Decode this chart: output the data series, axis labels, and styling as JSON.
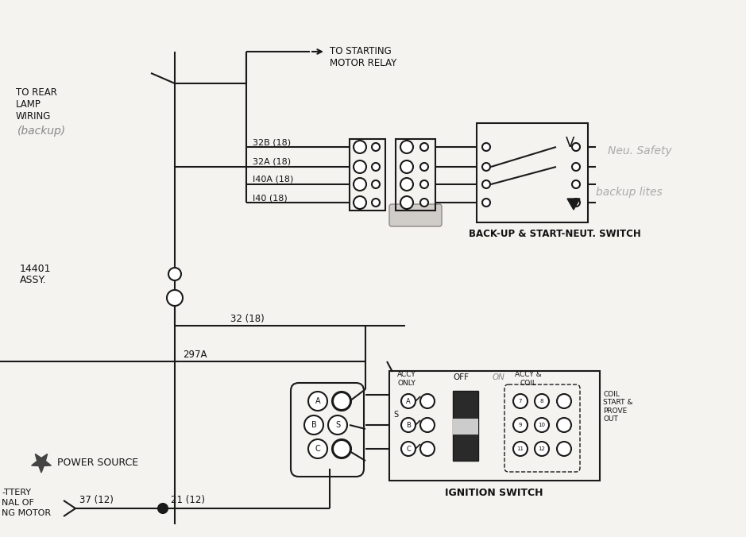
{
  "bg_color": "#f5f3f0",
  "line_color": "#1a1a1a",
  "labels": {
    "to_rear_lamp": "TO REAR\nLAMP\nWIRING",
    "backup": "(backup)",
    "to_starting": "TO STARTING\nMOTOR RELAY",
    "14401": "14401",
    "assy": "ASSY.",
    "wire_32b": "32B (18)",
    "wire_32a": "32A (18)",
    "wire_140a": "I40A (18)",
    "wire_140": "I40 (18)",
    "backup_switch": "BACK-UP & START-NEUT. SWITCH",
    "neu_safety": "Neu. Safety",
    "backup_lites": "backup lites",
    "wire_32_18": "32 (18)",
    "wire_297a": "297A",
    "power_source": "POWER SOURCE",
    "wire_37": "37 (12)",
    "wire_21": "21 (12)",
    "ignition_switch_label": "IGNITION SWITCH",
    "accy_only": "ACCY\nONLY",
    "off": "OFF",
    "on_hand": "ON",
    "accy_coil": "ACCY &\nCOIL",
    "coil_start": "COIL\nSTART &\nPROVE\nOUT",
    "battery_line1": "-TTERY",
    "battery_line2": "NAL OF",
    "battery_line3": "NG MOTOR"
  }
}
